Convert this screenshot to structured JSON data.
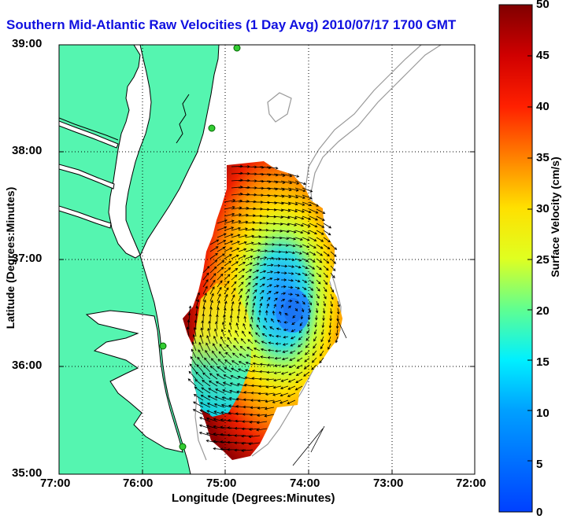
{
  "title": "Southern Mid-Atlantic Raw Velocities (1 Day Avg) 2010/07/17 1700 GMT",
  "axes": {
    "xlabel": "Longitude (Degrees:Minutes)",
    "ylabel": "Latitude (Degrees:Minutes)",
    "x_ticks": [
      "77:00",
      "76:00",
      "75:00",
      "74:00",
      "73:00",
      "72:00"
    ],
    "y_ticks": [
      "39:00",
      "38:00",
      "37:00",
      "36:00",
      "35:00"
    ]
  },
  "colorbar": {
    "label": "Surface Velocity (cm/s)",
    "ticks": [
      "50",
      "45",
      "40",
      "35",
      "30",
      "25",
      "20",
      "15",
      "10",
      "5",
      "0"
    ],
    "range": [
      0,
      50
    ]
  },
  "map": {
    "lon_range": [
      -77,
      -72
    ],
    "lat_range": [
      35,
      39
    ],
    "grid": "dotted",
    "land_color": "#55f5b0",
    "coast_color": "#000000",
    "isobath_color": "#999999"
  },
  "colors": {
    "title": "#1010e0"
  }
}
